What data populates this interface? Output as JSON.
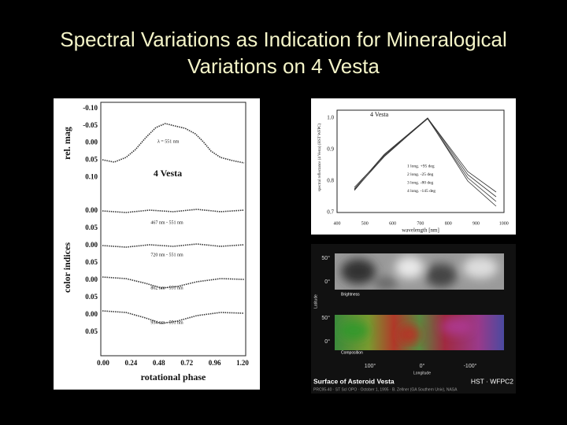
{
  "title": {
    "lines": [
      "Spectral Variations as Indication for Mineralogical",
      "Variations on 4 Vesta"
    ]
  },
  "light_curves": {
    "rel_mag_label": "rel. mag",
    "rel_mag_ticks": [
      "-0.10",
      "-0.05",
      "0.00",
      "0.05",
      "0.10"
    ],
    "wavelength_note": "λ = 551 nm",
    "target": "4 Vesta",
    "color_label": "color indices",
    "color_ticks": [
      "0.00",
      "0.05",
      "0.00",
      "0.05",
      "0.00",
      "0.05",
      "0.00",
      "0.05"
    ],
    "curve_labels": [
      "467 nm - 551 nm",
      "720 nm - 551 nm",
      "862 nm - 551 nm",
      "954 nm - 551 nm"
    ],
    "x_ticks": [
      "0.00",
      "0.24",
      "0.48",
      "0.72",
      "0.96",
      "1.20"
    ],
    "x_label": "rotational phase"
  },
  "spectrum": {
    "target": "4 Vesta",
    "y_label": "spectral reflectance (4 Vesta) (HST WFPC)",
    "y_ticks": [
      "1.0",
      "0.9",
      "0.8",
      "0.7"
    ],
    "x_ticks": [
      "400",
      "500",
      "600",
      "700",
      "800",
      "900",
      "1000"
    ],
    "x_label": "wavelength [nm]",
    "legend": [
      "1 long. +95 deg",
      "2 long. -25 deg",
      "3 long. -80 deg",
      "4 long. -145 deg"
    ]
  },
  "surface_map": {
    "lat_ticks_top": [
      "50°",
      "0°"
    ],
    "brightness_label": "Brightness",
    "lat_ticks_bottom": [
      "50°",
      "0°"
    ],
    "composition_label": "Composition",
    "lat_label": "Latitude",
    "lon_ticks": [
      "100°",
      "0°",
      "-100°"
    ],
    "lon_label": "Longitude",
    "caption_title": "Surface of Asteroid Vesta",
    "caption_instrument": "HST · WFPC2",
    "credit": "PRC95-40 · ST ScI OPO · October 1, 1995 · B. Zellner (GA Southern Univ), NASA"
  }
}
